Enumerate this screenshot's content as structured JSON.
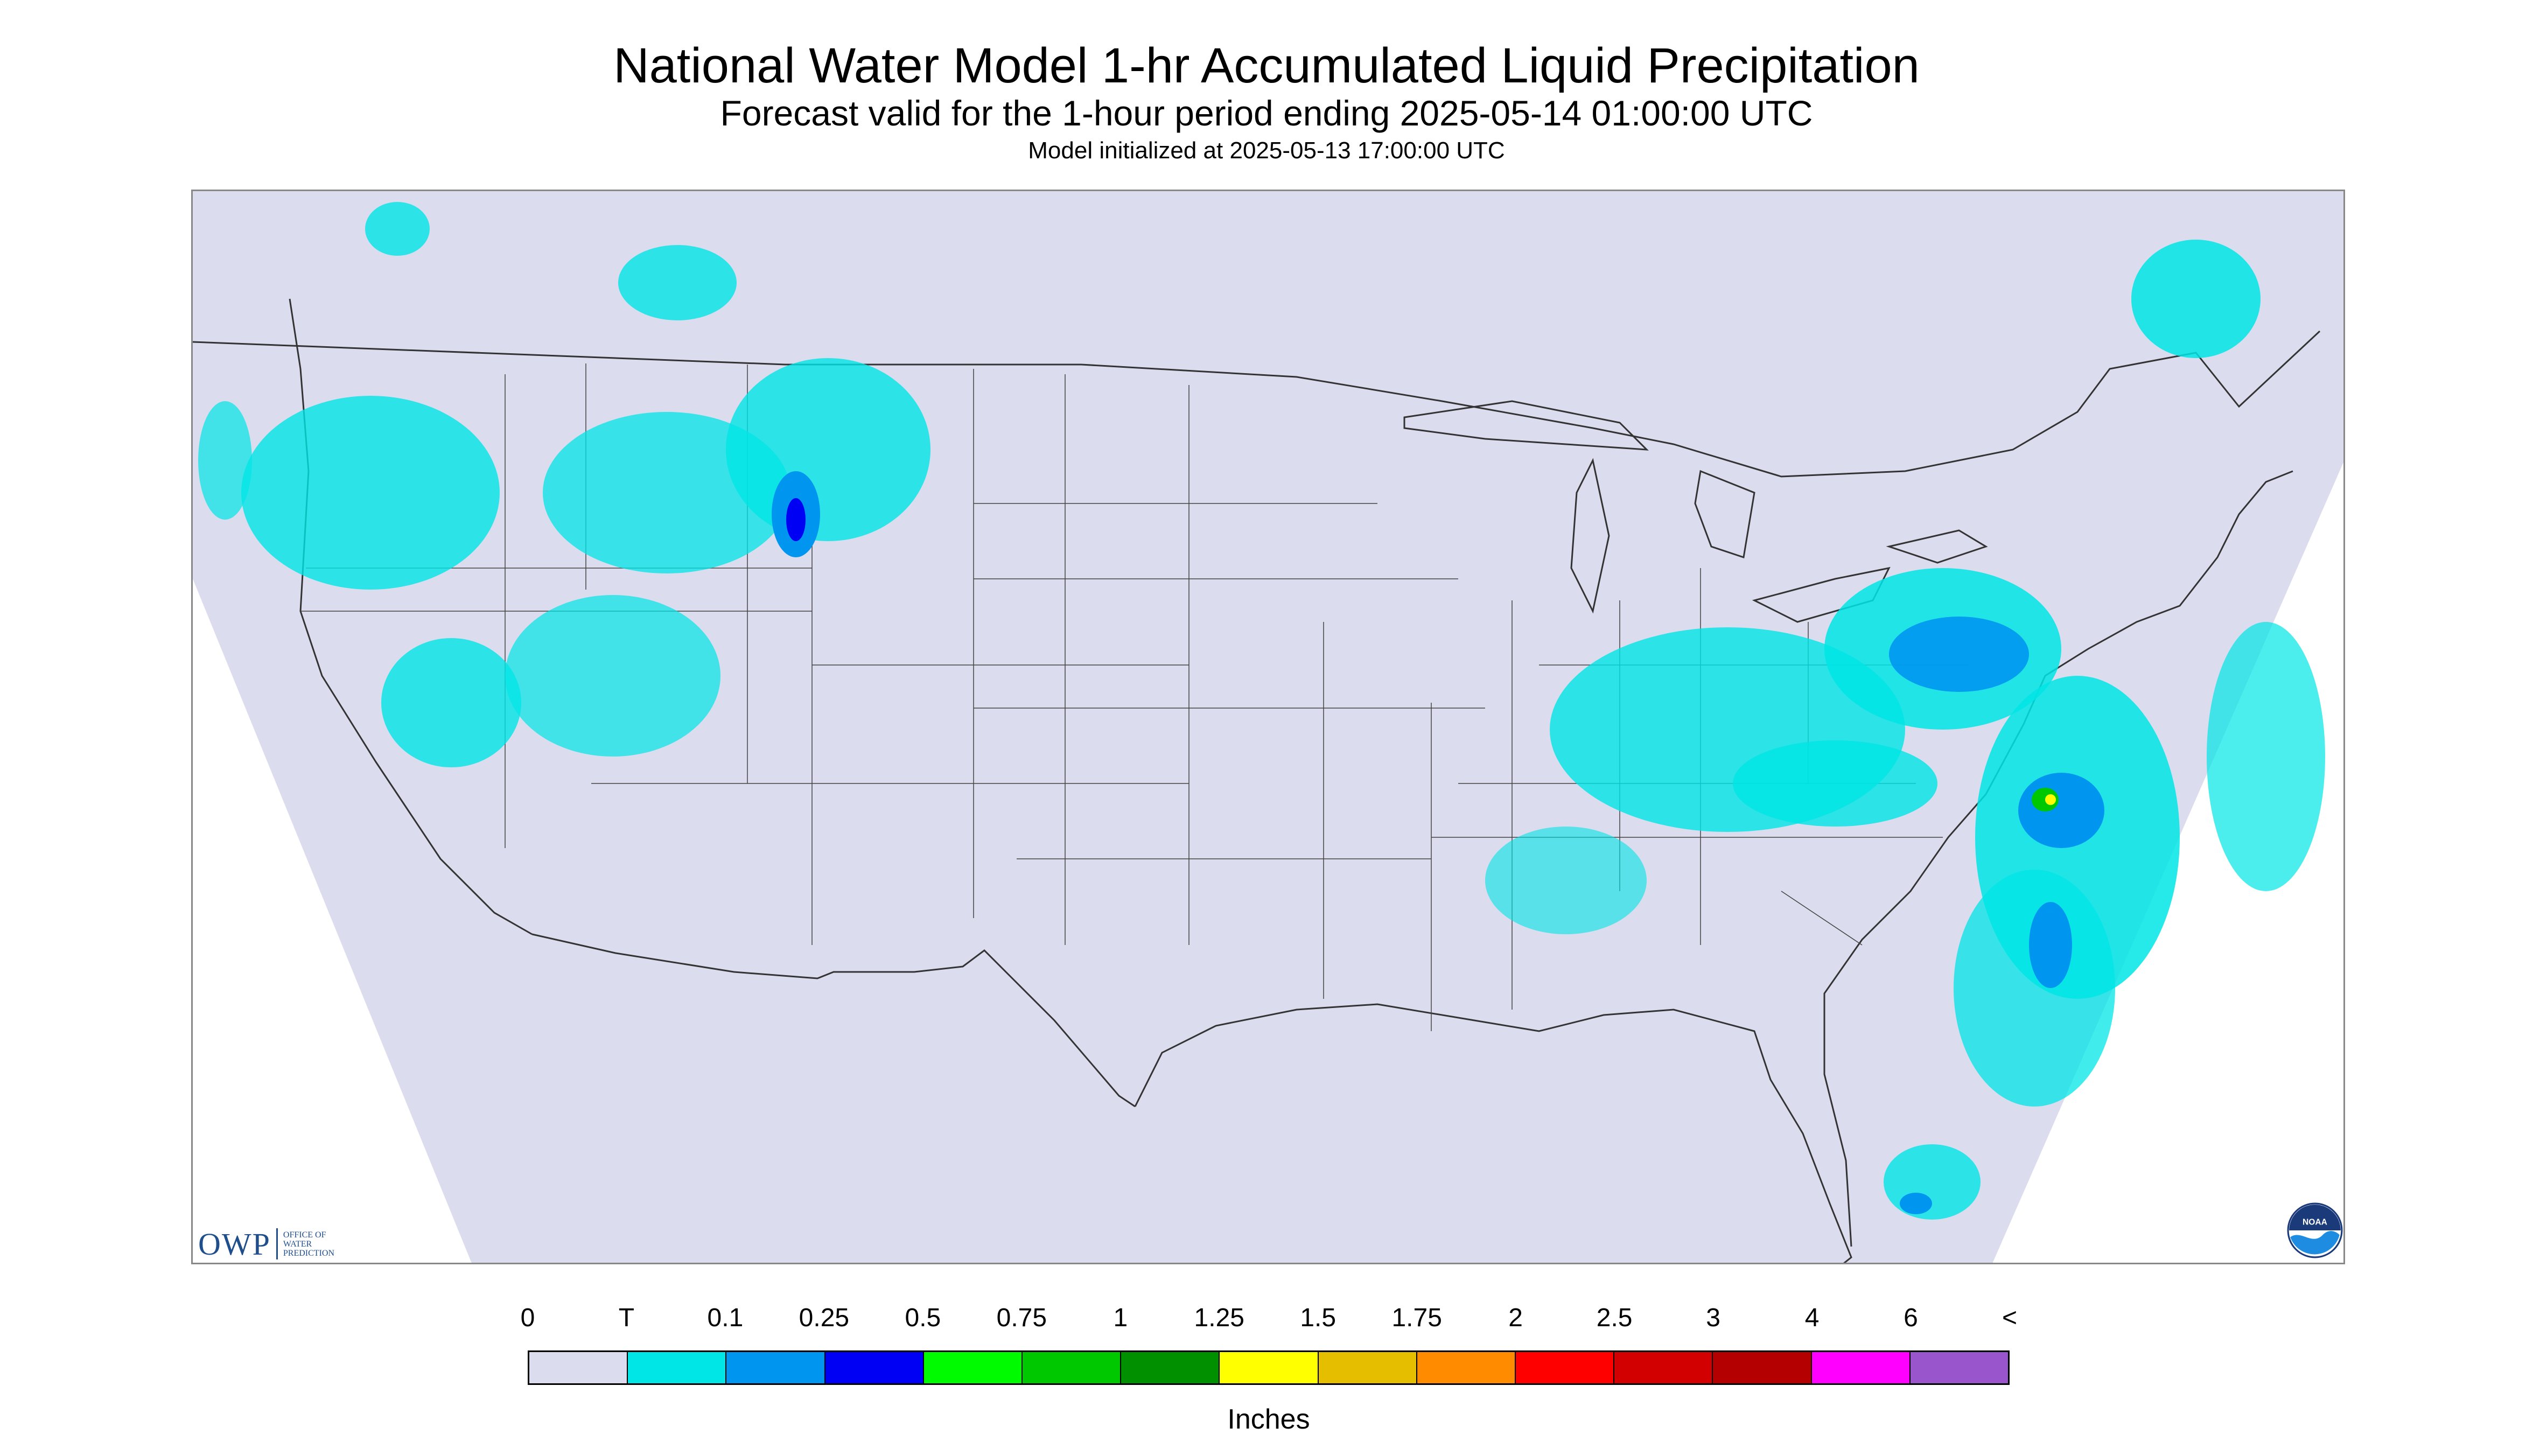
{
  "header": {
    "title": "National Water Model 1-hr Accumulated Liquid Precipitation",
    "subtitle": "Forecast valid for the 1-hour period ending 2025-05-14 01:00:00 UTC",
    "init": "Model initialized at 2025-05-13 17:00:00 UTC"
  },
  "map": {
    "region": "Contiguous United States",
    "colors": {
      "background": "#dcdcef",
      "outside": "#ffffff",
      "borders": "#333333",
      "rain_light": "#00e5e5",
      "rain_moderate": "#0096f0",
      "rain_heavy": "#0000f5"
    }
  },
  "logos": {
    "owp_letters": "OWP",
    "owp_text": [
      "OFFICE OF",
      "WATER",
      "PREDICTION"
    ],
    "noaa_text": "NOAA"
  },
  "legend": {
    "tick_labels": [
      "0",
      "T",
      "0.1",
      "0.25",
      "0.5",
      "0.75",
      "1",
      "1.25",
      "1.5",
      "1.75",
      "2",
      "2.5",
      "3",
      "4",
      "6",
      "<"
    ],
    "colors": [
      "#dcdcef",
      "#00e5e5",
      "#0096f0",
      "#0000f5",
      "#00fa00",
      "#00c800",
      "#009000",
      "#ffff00",
      "#e6be00",
      "#ff8c00",
      "#ff0000",
      "#d20000",
      "#b40000",
      "#ff00ff",
      "#9955cc"
    ],
    "units": "Inches"
  }
}
